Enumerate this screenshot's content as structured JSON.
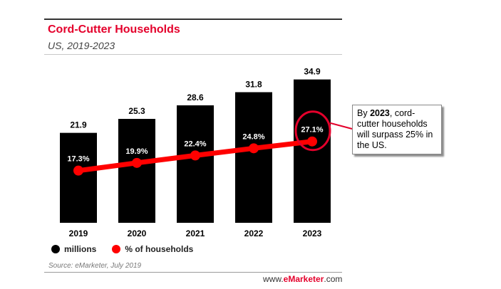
{
  "title": "Cord-Cutter Households",
  "subtitle": "US, 2019-2023",
  "chart_data": {
    "type": "bar",
    "categories": [
      "2019",
      "2020",
      "2021",
      "2022",
      "2023"
    ],
    "series": [
      {
        "name": "millions",
        "type": "bar",
        "values": [
          21.9,
          25.3,
          28.6,
          31.8,
          34.9
        ],
        "labels": [
          "21.9",
          "25.3",
          "28.6",
          "31.8",
          "34.9"
        ],
        "color": "#000000"
      },
      {
        "name": "% of households",
        "type": "line",
        "values": [
          17.3,
          19.9,
          22.4,
          24.8,
          27.1
        ],
        "labels": [
          "17.3%",
          "19.9%",
          "22.4%",
          "24.8%",
          "27.1%"
        ],
        "color": "#ff0000"
      }
    ],
    "ylim_bars": [
      0,
      36
    ],
    "ylim_line": [
      0,
      36
    ],
    "highlight_category": "2023",
    "legend_position": "bottom-left"
  },
  "legend": [
    {
      "label": "millions",
      "color": "#000000"
    },
    {
      "label": "% of households",
      "color": "#ff0000"
    }
  ],
  "source": "Source: eMarketer, July 2019",
  "brand": {
    "prefix": "www.",
    "name": "eMarketer",
    "suffix": ".com"
  },
  "callout": {
    "text_before": "By ",
    "year": "2023",
    "text_after": ", cord-cutter households will surpass 25% in the US."
  },
  "colors": {
    "accent": "#e4002b",
    "line": "#ff0000",
    "bar": "#000000"
  }
}
